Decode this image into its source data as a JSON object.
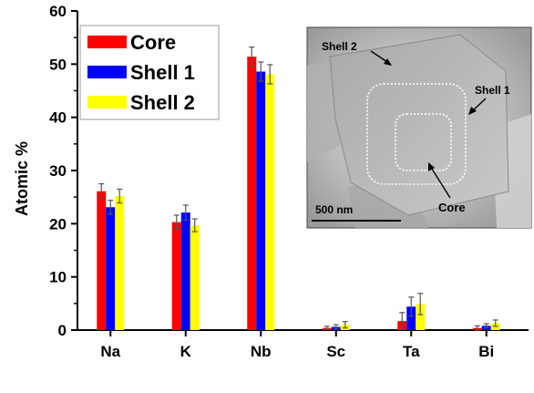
{
  "chart_data": {
    "type": "bar",
    "xlabel": "",
    "ylabel": "Atomic %",
    "ylim": [
      0,
      60
    ],
    "yticks": [
      0,
      10,
      20,
      30,
      40,
      50,
      60
    ],
    "categories": [
      "Na",
      "K",
      "Nb",
      "Sc",
      "Ta",
      "Bi"
    ],
    "series": [
      {
        "name": "Core",
        "color": "#ff0000",
        "values": [
          26.1,
          20.3,
          51.4,
          0.4,
          1.7,
          0.4
        ],
        "errors": [
          1.4,
          1.3,
          1.8,
          0.3,
          1.6,
          0.4
        ]
      },
      {
        "name": "Shell 1",
        "color": "#0000ff",
        "values": [
          23.1,
          22.1,
          48.6,
          0.6,
          4.4,
          0.8
        ],
        "errors": [
          1.3,
          1.4,
          1.8,
          0.4,
          1.8,
          0.4
        ]
      },
      {
        "name": "Shell 2",
        "color": "#ffff00",
        "values": [
          25.2,
          19.7,
          48.1,
          1.0,
          4.9,
          1.3
        ],
        "errors": [
          1.3,
          1.2,
          1.8,
          0.6,
          2.0,
          0.6
        ]
      }
    ],
    "legend": {
      "placement": "top-left"
    },
    "inset": {
      "label_shell2": "Shell 2",
      "label_shell1": "Shell 1",
      "label_core": "Core",
      "scale_bar": "500 nm"
    }
  }
}
